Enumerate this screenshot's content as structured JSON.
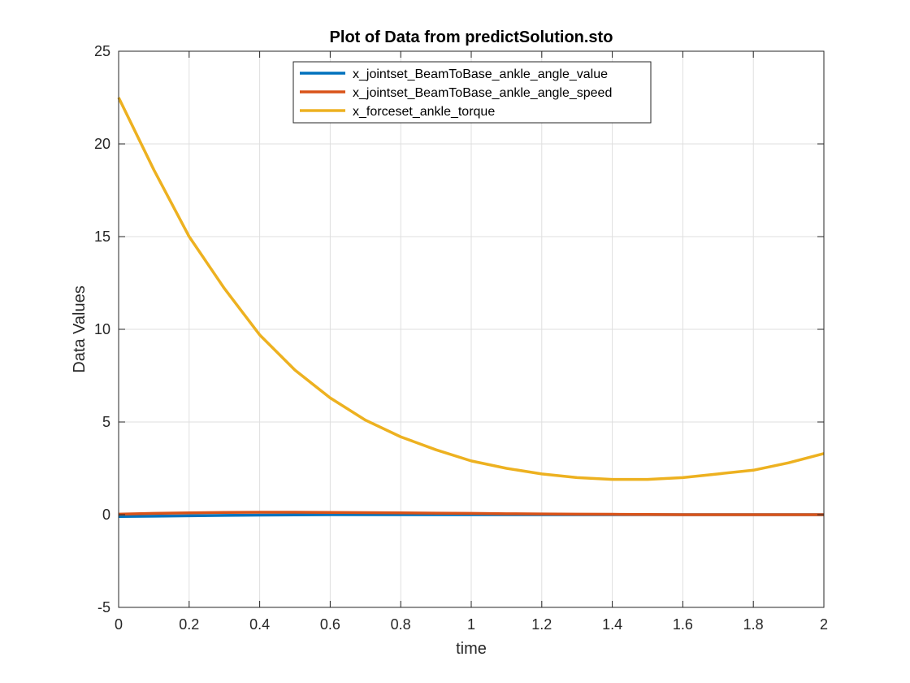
{
  "chart_data": {
    "type": "line",
    "title": "Plot of Data from predictSolution.sto",
    "xlabel": "time",
    "ylabel": "Data Values",
    "xlim": [
      0,
      2
    ],
    "ylim": [
      -5,
      25
    ],
    "xticks": [
      0,
      0.2,
      0.4,
      0.6,
      0.8,
      1,
      1.2,
      1.4,
      1.6,
      1.8,
      2
    ],
    "yticks": [
      -5,
      0,
      5,
      10,
      15,
      20,
      25
    ],
    "grid": true,
    "legend_position": "top-center",
    "x": [
      0,
      0.1,
      0.2,
      0.3,
      0.4,
      0.5,
      0.6,
      0.7,
      0.8,
      0.9,
      1.0,
      1.1,
      1.2,
      1.3,
      1.4,
      1.5,
      1.6,
      1.7,
      1.8,
      1.9,
      2.0
    ],
    "series": [
      {
        "name": "x_jointset_BeamToBase_ankle_angle_value",
        "color": "#0072BD",
        "values": [
          -0.1,
          -0.08,
          -0.06,
          -0.04,
          -0.02,
          -0.01,
          0.0,
          0.0,
          0.0,
          0.0,
          0.0,
          0.0,
          0.0,
          0.0,
          0.0,
          0.0,
          0.0,
          0.0,
          0.0,
          0.0,
          0.0
        ]
      },
      {
        "name": "x_jointset_BeamToBase_ankle_angle_speed",
        "color": "#D95319",
        "values": [
          0.03,
          0.07,
          0.1,
          0.12,
          0.13,
          0.13,
          0.12,
          0.11,
          0.1,
          0.08,
          0.07,
          0.05,
          0.04,
          0.03,
          0.02,
          0.01,
          0.0,
          0.0,
          0.0,
          0.0,
          0.0
        ]
      },
      {
        "name": "x_forceset_ankle_torque",
        "color": "#EDB120",
        "values": [
          22.5,
          18.6,
          15.0,
          12.2,
          9.7,
          7.8,
          6.3,
          5.1,
          4.2,
          3.5,
          2.9,
          2.5,
          2.2,
          2.0,
          1.9,
          1.9,
          2.0,
          2.2,
          2.4,
          2.8,
          3.3
        ]
      }
    ]
  }
}
